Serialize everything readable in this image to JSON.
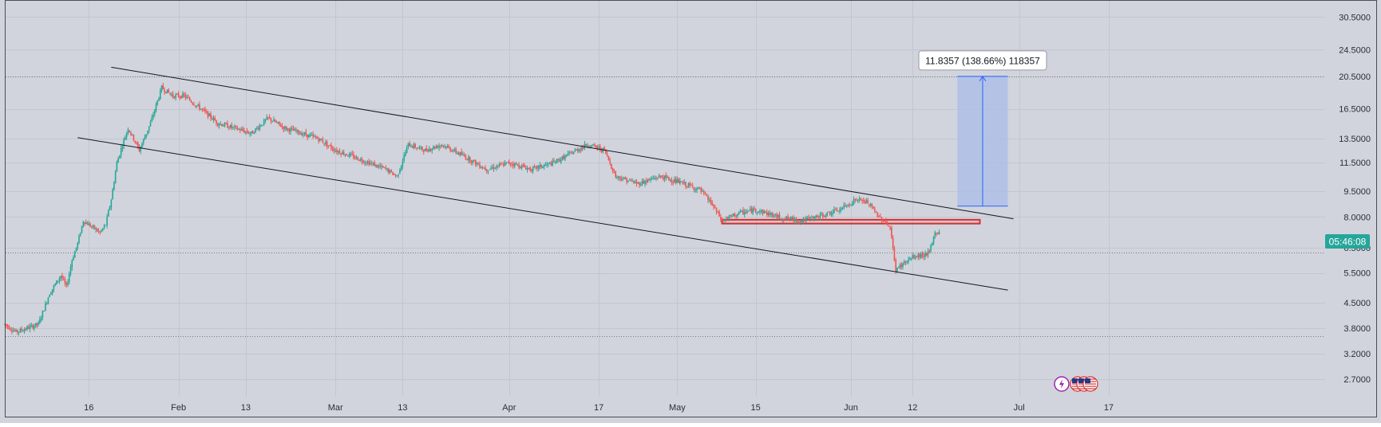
{
  "colors": {
    "background": "#d1d4dc",
    "grid": "#c3c6ce",
    "frame": "#4a4d55",
    "axis_text": "#2a2e39",
    "bull": "#26a69a",
    "bear": "#ef5350",
    "trendline": "#131722",
    "zone_border": "#d32f2f",
    "projection_fill": "#a9bde8",
    "projection_line": "#2962ff",
    "price_badge": "#26a69a",
    "level_line": "#787b86"
  },
  "icons": [
    "lightning-bolt-icon",
    "us-flag-icon",
    "us-flag-icon",
    "us-flag-icon"
  ],
  "chart_data": {
    "type": "candlestick",
    "y_scale": "log",
    "ylim": [
      2.4,
      34
    ],
    "y_ticks": [
      "30.5000",
      "24.5000",
      "20.5000",
      "16.5000",
      "13.5000",
      "11.5000",
      "9.5000",
      "8.0000",
      "6.5000",
      "5.5000",
      "4.5000",
      "3.8000",
      "3.2000",
      "2.7000"
    ],
    "x_tick_labels": [
      "16",
      "Feb",
      "13",
      "Mar",
      "13",
      "Apr",
      "17",
      "May",
      "15",
      "Jun",
      "12",
      "Jul",
      "17"
    ],
    "x_tick_dates": [
      "2023-01-16",
      "2023-02-01",
      "2023-02-13",
      "2023-03-01",
      "2023-03-13",
      "2023-04-01",
      "2023-04-17",
      "2023-05-01",
      "2023-05-15",
      "2023-06-01",
      "2023-06-12",
      "2023-07-01",
      "2023-07-17"
    ],
    "grid": true,
    "price_series": {
      "dates": [
        "2023-01-01",
        "2023-01-03",
        "2023-01-05",
        "2023-01-07",
        "2023-01-09",
        "2023-01-11",
        "2023-01-12",
        "2023-01-13",
        "2023-01-14",
        "2023-01-15",
        "2023-01-17",
        "2023-01-18",
        "2023-01-19",
        "2023-01-20",
        "2023-01-21",
        "2023-01-22",
        "2023-01-23",
        "2023-01-24",
        "2023-01-25",
        "2023-01-27",
        "2023-01-29",
        "2023-01-31",
        "2023-02-02",
        "2023-02-05",
        "2023-02-08",
        "2023-02-11",
        "2023-02-14",
        "2023-02-17",
        "2023-02-20",
        "2023-02-23",
        "2023-02-26",
        "2023-03-01",
        "2023-03-04",
        "2023-03-07",
        "2023-03-10",
        "2023-03-12",
        "2023-03-14",
        "2023-03-17",
        "2023-03-20",
        "2023-03-24",
        "2023-03-28",
        "2023-04-01",
        "2023-04-05",
        "2023-04-09",
        "2023-04-13",
        "2023-04-15",
        "2023-04-18",
        "2023-04-20",
        "2023-04-24",
        "2023-04-28",
        "2023-05-02",
        "2023-05-05",
        "2023-05-07",
        "2023-05-09",
        "2023-05-12",
        "2023-05-15",
        "2023-05-19",
        "2023-05-23",
        "2023-05-26",
        "2023-05-30",
        "2023-06-02",
        "2023-06-04",
        "2023-06-06",
        "2023-06-07",
        "2023-06-08",
        "2023-06-09",
        "2023-06-10",
        "2023-06-12",
        "2023-06-14",
        "2023-06-15",
        "2023-06-16"
      ],
      "close": [
        3.9,
        3.7,
        3.8,
        3.9,
        4.8,
        5.4,
        5.0,
        6.0,
        6.7,
        7.8,
        7.4,
        7.2,
        7.6,
        9.0,
        11.5,
        13.0,
        14.5,
        13.5,
        12.5,
        15.0,
        19.0,
        18.0,
        18.0,
        16.5,
        15.0,
        14.5,
        14.0,
        15.5,
        14.5,
        14.0,
        13.5,
        12.5,
        12.0,
        11.5,
        11.0,
        10.5,
        13.0,
        12.5,
        13.0,
        12.0,
        11.0,
        11.5,
        11.0,
        11.5,
        12.5,
        13.0,
        12.5,
        10.5,
        10.0,
        10.5,
        10.0,
        9.6,
        8.8,
        7.8,
        8.2,
        8.4,
        8.0,
        7.8,
        8.0,
        8.4,
        9.0,
        8.8,
        8.0,
        7.8,
        7.4,
        5.6,
        5.8,
        6.1,
        6.2,
        6.3,
        7.2
      ]
    },
    "overlays": {
      "upper_trendline": {
        "start": [
          "2023-01-20",
          21.8
        ],
        "end": [
          "2023-06-30",
          7.9
        ]
      },
      "lower_trendline": {
        "start": [
          "2023-01-14",
          13.6
        ],
        "end": [
          "2023-06-29",
          4.9
        ]
      },
      "resistance_zone": {
        "date_from": "2023-05-09",
        "date_to": "2023-06-24",
        "price_from": 7.65,
        "price_to": 7.85
      },
      "horizontal_levels": [
        20.5,
        6.3,
        3.6
      ],
      "price_projection": {
        "date_from": "2023-06-20",
        "date_to": "2023-06-29",
        "price_from": 8.6,
        "price_to": 20.5,
        "label": "11.8357 (138.66%) 118357"
      }
    },
    "current_price_label": "05:46:08"
  }
}
